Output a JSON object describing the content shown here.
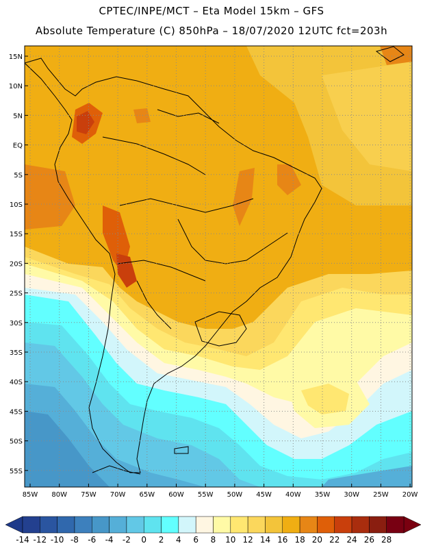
{
  "header": {
    "line1": "CPTEC/INPE/MCT –  Eta Model 15km – GFS",
    "line2": "Absolute Temperature (C) 850hPa – 18/07/2020 12UTC fct=203h"
  },
  "map": {
    "lat_labels": [
      "15N",
      "10N",
      "5N",
      "EQ",
      "5S",
      "10S",
      "15S",
      "20S",
      "25S",
      "30S",
      "35S",
      "40S",
      "45S",
      "50S",
      "55S"
    ],
    "lon_labels": [
      "85W",
      "80W",
      "75W",
      "70W",
      "65W",
      "60W",
      "55W",
      "50W",
      "45W",
      "40W",
      "35W",
      "30W",
      "25W",
      "20W"
    ]
  },
  "colorbar": {
    "labels": [
      "-14",
      "-12",
      "-10",
      "-8",
      "-6",
      "-4",
      "-2",
      "0",
      "2",
      "4",
      "6",
      "8",
      "10",
      "12",
      "14",
      "16",
      "18",
      "20",
      "22",
      "24",
      "26",
      "28"
    ],
    "colors": [
      "#23408f",
      "#2a55a0",
      "#3068ad",
      "#3d80bd",
      "#4797c8",
      "#55afd8",
      "#62c8e6",
      "#5fe3ef",
      "#62ffff",
      "#d2f6fb",
      "#fff6e2",
      "#fffaa6",
      "#ffe771",
      "#fbd75c",
      "#f3c43a",
      "#f0ae13",
      "#e78616",
      "#df5f08",
      "#c93f0c",
      "#a92d0e",
      "#8a1e10",
      "#780012"
    ],
    "under_color": "#1e3a8a",
    "over_color": "#7a0010"
  }
}
